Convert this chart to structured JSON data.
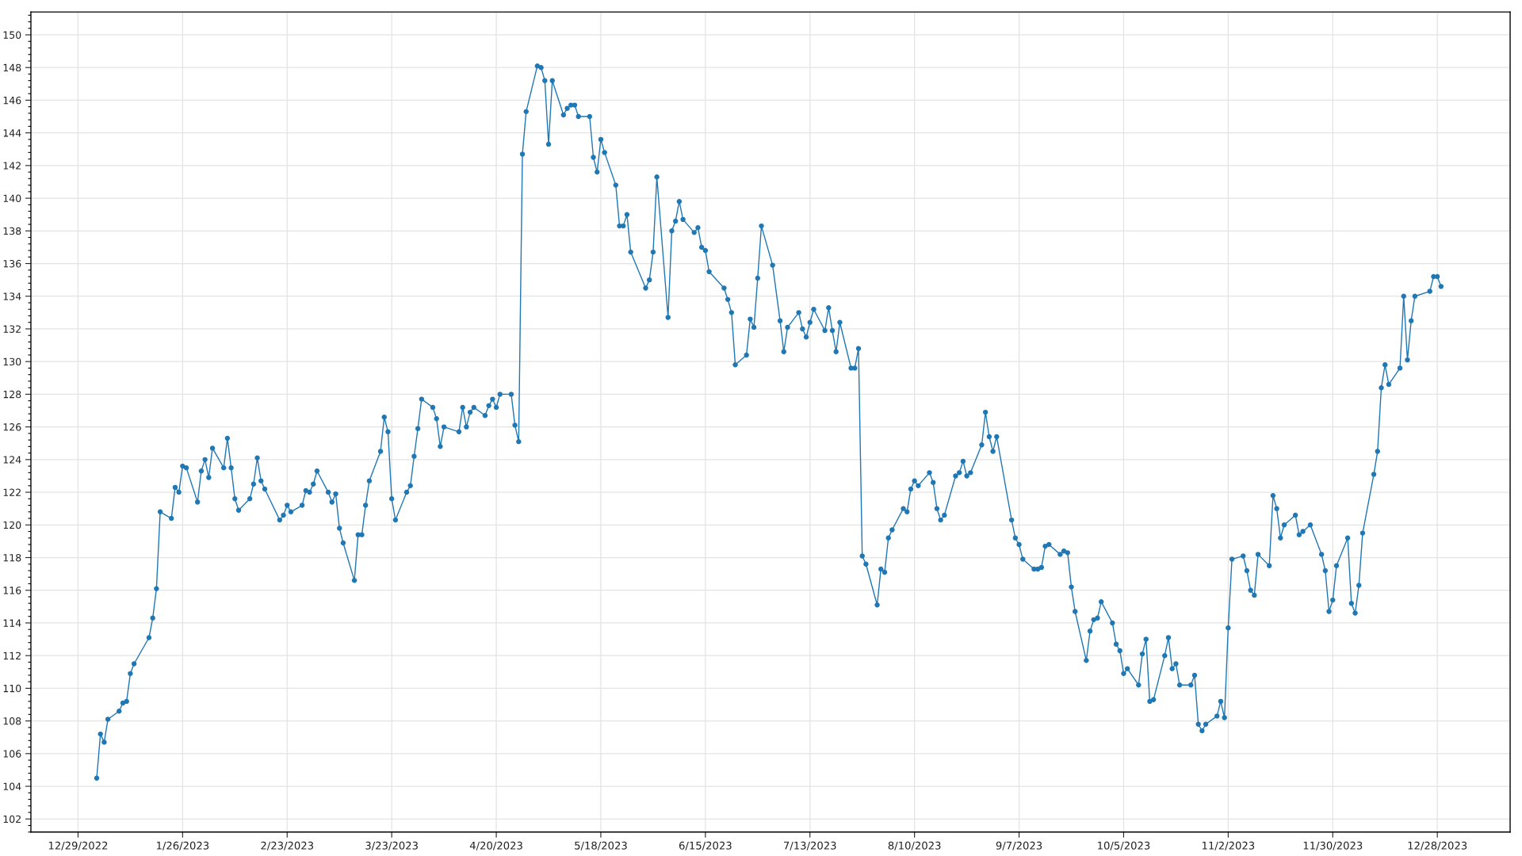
{
  "chart_data": {
    "type": "line",
    "x": [
      "2023-01-03",
      "2023-01-04",
      "2023-01-05",
      "2023-01-06",
      "2023-01-09",
      "2023-01-10",
      "2023-01-11",
      "2023-01-12",
      "2023-01-13",
      "2023-01-17",
      "2023-01-18",
      "2023-01-19",
      "2023-01-20",
      "2023-01-23",
      "2023-01-24",
      "2023-01-25",
      "2023-01-26",
      "2023-01-27",
      "2023-01-30",
      "2023-01-31",
      "2023-02-01",
      "2023-02-02",
      "2023-02-03",
      "2023-02-06",
      "2023-02-07",
      "2023-02-08",
      "2023-02-09",
      "2023-02-10",
      "2023-02-13",
      "2023-02-14",
      "2023-02-15",
      "2023-02-16",
      "2023-02-17",
      "2023-02-21",
      "2023-02-22",
      "2023-02-23",
      "2023-02-24",
      "2023-02-27",
      "2023-02-28",
      "2023-03-01",
      "2023-03-02",
      "2023-03-03",
      "2023-03-06",
      "2023-03-07",
      "2023-03-08",
      "2023-03-09",
      "2023-03-10",
      "2023-03-13",
      "2023-03-14",
      "2023-03-15",
      "2023-03-16",
      "2023-03-17",
      "2023-03-20",
      "2023-03-21",
      "2023-03-22",
      "2023-03-23",
      "2023-03-24",
      "2023-03-27",
      "2023-03-28",
      "2023-03-29",
      "2023-03-30",
      "2023-03-31",
      "2023-04-03",
      "2023-04-04",
      "2023-04-05",
      "2023-04-06",
      "2023-04-10",
      "2023-04-11",
      "2023-04-12",
      "2023-04-13",
      "2023-04-14",
      "2023-04-17",
      "2023-04-18",
      "2023-04-19",
      "2023-04-20",
      "2023-04-21",
      "2023-04-24",
      "2023-04-25",
      "2023-04-26",
      "2023-04-27",
      "2023-04-28",
      "2023-05-01",
      "2023-05-02",
      "2023-05-03",
      "2023-05-04",
      "2023-05-05",
      "2023-05-08",
      "2023-05-09",
      "2023-05-10",
      "2023-05-11",
      "2023-05-12",
      "2023-05-15",
      "2023-05-16",
      "2023-05-17",
      "2023-05-18",
      "2023-05-19",
      "2023-05-22",
      "2023-05-23",
      "2023-05-24",
      "2023-05-25",
      "2023-05-26",
      "2023-05-30",
      "2023-05-31",
      "2023-06-01",
      "2023-06-02",
      "2023-06-05",
      "2023-06-06",
      "2023-06-07",
      "2023-06-08",
      "2023-06-09",
      "2023-06-12",
      "2023-06-13",
      "2023-06-14",
      "2023-06-15",
      "2023-06-16",
      "2023-06-20",
      "2023-06-21",
      "2023-06-22",
      "2023-06-23",
      "2023-06-26",
      "2023-06-27",
      "2023-06-28",
      "2023-06-29",
      "2023-06-30",
      "2023-07-03",
      "2023-07-05",
      "2023-07-06",
      "2023-07-07",
      "2023-07-10",
      "2023-07-11",
      "2023-07-12",
      "2023-07-13",
      "2023-07-14",
      "2023-07-17",
      "2023-07-18",
      "2023-07-19",
      "2023-07-20",
      "2023-07-21",
      "2023-07-24",
      "2023-07-25",
      "2023-07-26",
      "2023-07-27",
      "2023-07-28",
      "2023-07-31",
      "2023-08-01",
      "2023-08-02",
      "2023-08-03",
      "2023-08-04",
      "2023-08-07",
      "2023-08-08",
      "2023-08-09",
      "2023-08-10",
      "2023-08-11",
      "2023-08-14",
      "2023-08-15",
      "2023-08-16",
      "2023-08-17",
      "2023-08-18",
      "2023-08-21",
      "2023-08-22",
      "2023-08-23",
      "2023-08-24",
      "2023-08-25",
      "2023-08-28",
      "2023-08-29",
      "2023-08-30",
      "2023-08-31",
      "2023-09-01",
      "2023-09-05",
      "2023-09-06",
      "2023-09-07",
      "2023-09-08",
      "2023-09-11",
      "2023-09-12",
      "2023-09-13",
      "2023-09-14",
      "2023-09-15",
      "2023-09-18",
      "2023-09-19",
      "2023-09-20",
      "2023-09-21",
      "2023-09-22",
      "2023-09-25",
      "2023-09-26",
      "2023-09-27",
      "2023-09-28",
      "2023-09-29",
      "2023-10-02",
      "2023-10-03",
      "2023-10-04",
      "2023-10-05",
      "2023-10-06",
      "2023-10-09",
      "2023-10-10",
      "2023-10-11",
      "2023-10-12",
      "2023-10-13",
      "2023-10-16",
      "2023-10-17",
      "2023-10-18",
      "2023-10-19",
      "2023-10-20",
      "2023-10-23",
      "2023-10-24",
      "2023-10-25",
      "2023-10-26",
      "2023-10-27",
      "2023-10-30",
      "2023-10-31",
      "2023-11-01",
      "2023-11-02",
      "2023-11-03",
      "2023-11-06",
      "2023-11-07",
      "2023-11-08",
      "2023-11-09",
      "2023-11-10",
      "2023-11-13",
      "2023-11-14",
      "2023-11-15",
      "2023-11-16",
      "2023-11-17",
      "2023-11-20",
      "2023-11-21",
      "2023-11-22",
      "2023-11-24",
      "2023-11-27",
      "2023-11-28",
      "2023-11-29",
      "2023-11-30",
      "2023-12-01",
      "2023-12-04",
      "2023-12-05",
      "2023-12-06",
      "2023-12-07",
      "2023-12-08",
      "2023-12-11",
      "2023-12-12",
      "2023-12-13",
      "2023-12-14",
      "2023-12-15",
      "2023-12-18",
      "2023-12-19",
      "2023-12-20",
      "2023-12-21",
      "2023-12-22",
      "2023-12-26",
      "2023-12-27",
      "2023-12-28",
      "2023-12-29"
    ],
    "series": [
      {
        "color": "#1f77b4",
        "values": [
          104.5,
          107.2,
          106.7,
          108.1,
          108.6,
          109.1,
          109.2,
          110.9,
          111.5,
          113.1,
          114.3,
          116.1,
          120.8,
          120.4,
          122.3,
          122.0,
          123.6,
          123.5,
          121.4,
          123.3,
          124.0,
          122.9,
          124.7,
          123.5,
          125.3,
          123.5,
          121.6,
          120.9,
          121.6,
          122.5,
          124.1,
          122.7,
          122.2,
          120.3,
          120.6,
          121.2,
          120.8,
          121.2,
          122.1,
          122.0,
          122.5,
          123.3,
          122.0,
          121.4,
          121.9,
          119.8,
          118.9,
          116.6,
          119.4,
          119.4,
          121.2,
          122.7,
          124.5,
          126.6,
          125.7,
          121.6,
          120.3,
          122.0,
          122.4,
          124.2,
          125.9,
          127.7,
          127.2,
          126.5,
          124.8,
          126.0,
          125.7,
          127.2,
          126.0,
          126.9,
          127.2,
          126.7,
          127.3,
          127.7,
          127.2,
          128.0,
          128.0,
          126.1,
          125.1,
          142.7,
          145.3,
          148.1,
          148.0,
          147.2,
          143.3,
          147.2,
          145.1,
          145.5,
          145.7,
          145.7,
          145.0,
          145.0,
          142.5,
          141.6,
          143.6,
          142.8,
          140.8,
          138.3,
          138.3,
          139.0,
          136.7,
          134.5,
          135.0,
          136.7,
          141.3,
          132.7,
          138.0,
          138.6,
          139.8,
          138.7,
          137.9,
          138.2,
          137.0,
          136.8,
          135.5,
          134.5,
          133.8,
          133.0,
          129.8,
          130.4,
          132.6,
          132.1,
          135.1,
          138.3,
          135.9,
          132.5,
          130.6,
          132.1,
          133.0,
          132.0,
          131.5,
          132.4,
          133.2,
          131.9,
          133.3,
          131.9,
          130.6,
          132.4,
          129.6,
          129.6,
          130.8,
          118.1,
          117.6,
          115.1,
          117.3,
          117.1,
          119.2,
          119.7,
          121.0,
          120.8,
          122.2,
          122.7,
          122.4,
          123.2,
          122.6,
          121.0,
          120.3,
          120.6,
          123.0,
          123.2,
          123.9,
          123.0,
          123.2,
          124.9,
          126.9,
          125.4,
          124.5,
          125.4,
          120.3,
          119.2,
          118.8,
          117.9,
          117.3,
          117.3,
          117.4,
          118.7,
          118.8,
          118.2,
          118.4,
          118.3,
          116.2,
          114.7,
          111.7,
          113.5,
          114.2,
          114.3,
          115.3,
          114.0,
          112.7,
          112.3,
          110.9,
          111.2,
          110.2,
          112.1,
          113.0,
          109.2,
          109.3,
          112.0,
          113.1,
          111.2,
          111.5,
          110.2,
          110.2,
          110.8,
          107.8,
          107.4,
          107.8,
          108.3,
          109.2,
          108.2,
          113.7,
          117.9,
          118.1,
          117.2,
          116.0,
          115.7,
          118.2,
          117.5,
          121.8,
          121.0,
          119.2,
          120.0,
          120.6,
          119.4,
          119.6,
          120.0,
          118.2,
          117.2,
          114.7,
          115.4,
          117.5,
          119.2,
          115.2,
          114.6,
          116.3,
          119.5,
          123.1,
          124.5,
          128.4,
          129.8,
          128.6,
          129.6,
          134.0,
          130.1,
          132.5,
          134.0,
          134.3,
          135.2,
          135.2,
          134.6
        ]
      }
    ],
    "xlim": [
      "2022-12-16T09:00",
      "2024-01-16T12:00"
    ],
    "ylim": [
      101.2,
      151.4
    ],
    "xticks": [
      {
        "value": "2022-12-29",
        "label": "12/29/2022"
      },
      {
        "value": "2023-01-26",
        "label": "1/26/2023"
      },
      {
        "value": "2023-02-23",
        "label": "2/23/2023"
      },
      {
        "value": "2023-03-23",
        "label": "3/23/2023"
      },
      {
        "value": "2023-04-20",
        "label": "4/20/2023"
      },
      {
        "value": "2023-05-18",
        "label": "5/18/2023"
      },
      {
        "value": "2023-06-15",
        "label": "6/15/2023"
      },
      {
        "value": "2023-07-13",
        "label": "7/13/2023"
      },
      {
        "value": "2023-08-10",
        "label": "8/10/2023"
      },
      {
        "value": "2023-09-07",
        "label": "9/7/2023"
      },
      {
        "value": "2023-10-05",
        "label": "10/5/2023"
      },
      {
        "value": "2023-11-02",
        "label": "11/2/2023"
      },
      {
        "value": "2023-11-30",
        "label": "11/30/2023"
      },
      {
        "value": "2023-12-28",
        "label": "12/28/2023"
      }
    ],
    "yticks": [
      102,
      104,
      106,
      108,
      110,
      112,
      114,
      116,
      118,
      120,
      122,
      124,
      126,
      128,
      130,
      132,
      134,
      136,
      138,
      140,
      142,
      144,
      146,
      148,
      150
    ],
    "grid": true,
    "marker": "circle",
    "line_style": "solid"
  }
}
